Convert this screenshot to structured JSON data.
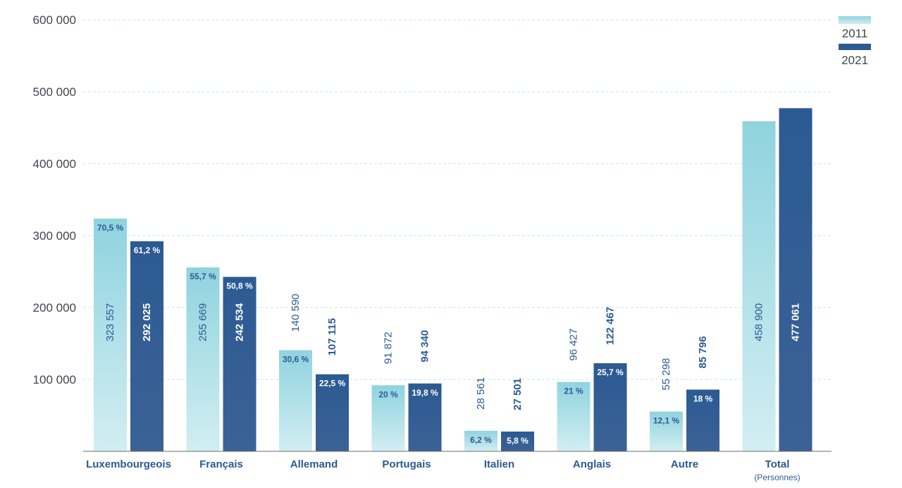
{
  "chart_data": {
    "type": "bar",
    "categories": [
      "Luxembourgeois",
      "Français",
      "Allemand",
      "Portugais",
      "Italien",
      "Anglais",
      "Autre",
      "Total"
    ],
    "category_sublabels": [
      "",
      "",
      "",
      "",
      "",
      "",
      "",
      "(Personnes)"
    ],
    "series": [
      {
        "name": "2011",
        "values": [
          323557,
          255669,
          140590,
          91872,
          28561,
          96427,
          55298,
          458900
        ],
        "value_labels": [
          "323 557",
          "255 669",
          "140 590",
          "91 872",
          "28 561",
          "96 427",
          "55 298",
          "458 900"
        ],
        "percent_labels": [
          "70,5 %",
          "55,7 %",
          "30,6 %",
          "20 %",
          "6,2 %",
          "21 %",
          "12,1 %",
          ""
        ],
        "color_top": "#8fd3df",
        "color_bottom": "#d2eef2"
      },
      {
        "name": "2021",
        "values": [
          292025,
          242534,
          107115,
          94340,
          27501,
          122467,
          85796,
          477061
        ],
        "value_labels": [
          "292 025",
          "242 534",
          "107 115",
          "94 340",
          "27 501",
          "122 467",
          "85 796",
          "477 061"
        ],
        "percent_labels": [
          "61,2 %",
          "50,8 %",
          "22,5 %",
          "19,8 %",
          "5,8 %",
          "25,7 %",
          "18 %",
          ""
        ],
        "color_top": "#2c5a93",
        "color_bottom": "#3b6296"
      }
    ],
    "yticks": [
      100000,
      200000,
      300000,
      400000,
      500000,
      600000
    ],
    "ytick_labels": [
      "100 000",
      "200 000",
      "300 000",
      "400 000",
      "500 000",
      "600 000"
    ],
    "ylim": [
      0,
      600000
    ],
    "grid": true,
    "legend_position": "top-right"
  },
  "colors": {
    "label_dark": "#2c5a93",
    "label_light": "#ffffff",
    "axis_text": "#3f4650",
    "grid": "#cfe3ea",
    "axis_line": "#6b6b6b"
  }
}
